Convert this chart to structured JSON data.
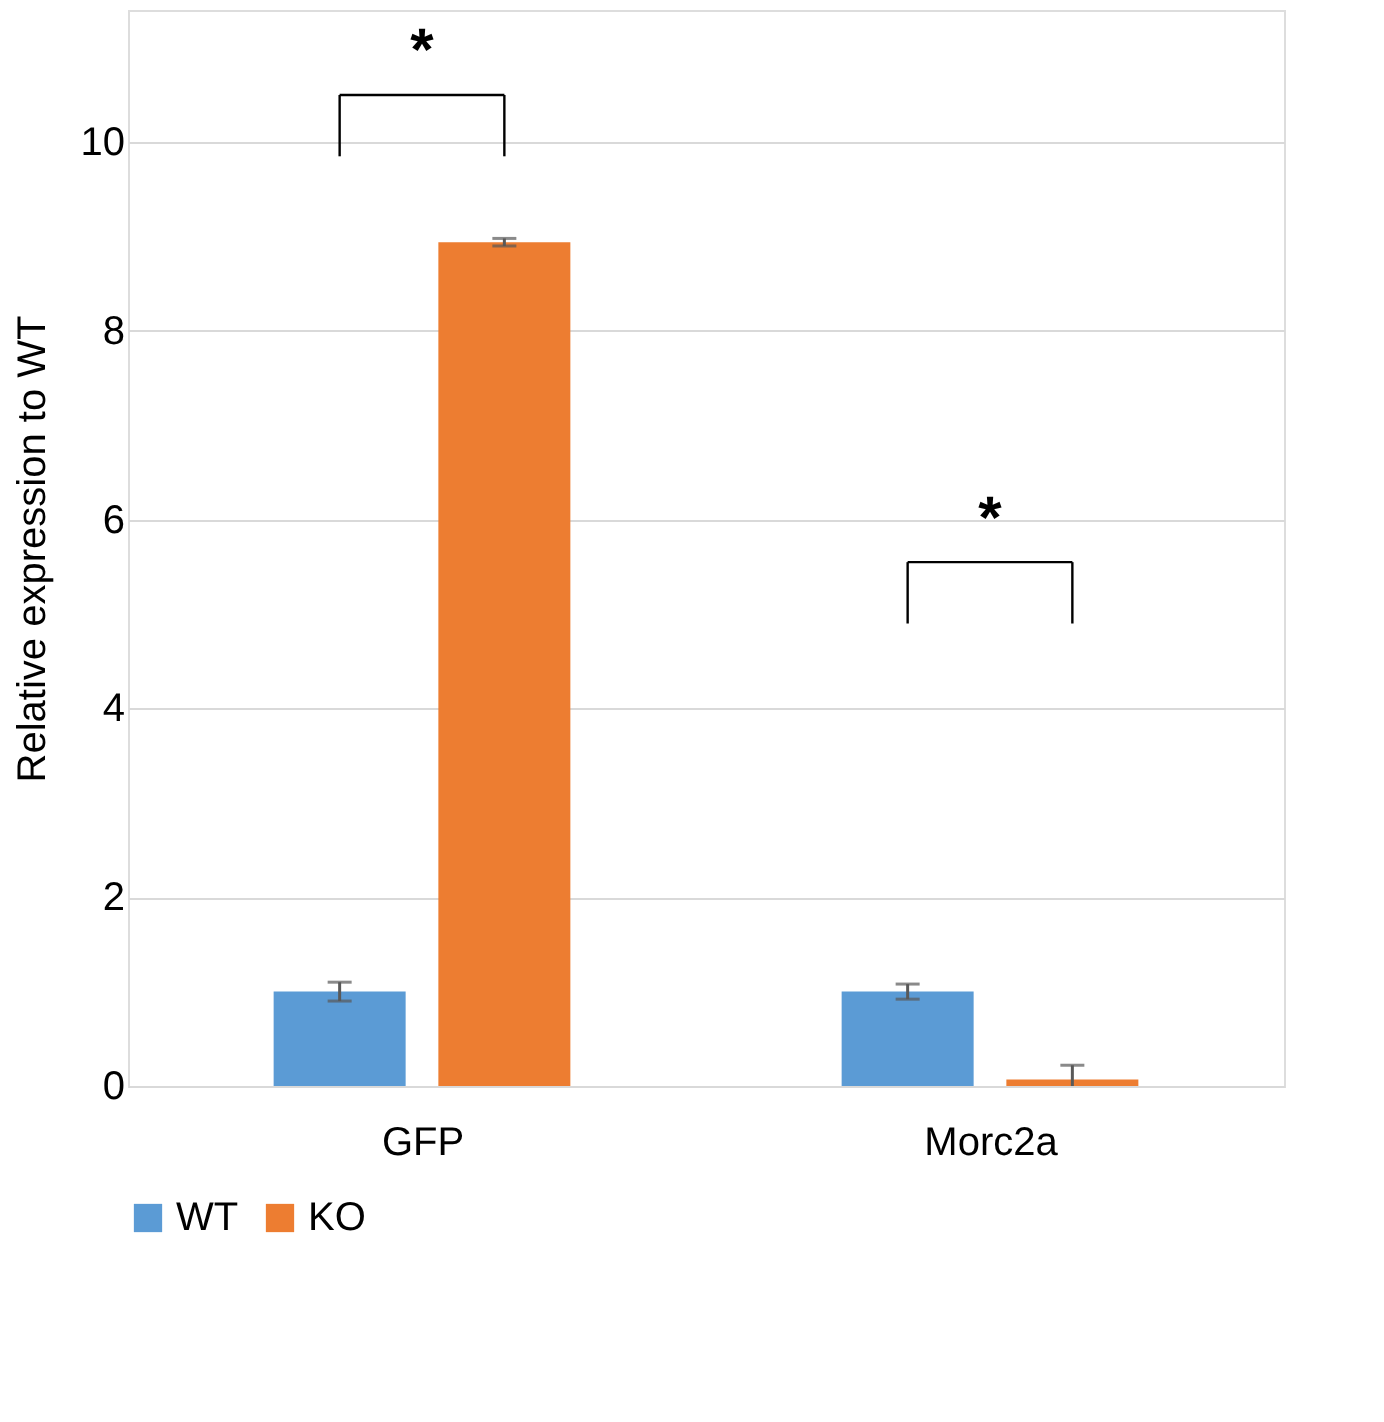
{
  "chart_data": {
    "type": "bar",
    "ylabel": "Relative expression to WT",
    "categories": [
      "GFP",
      "Morc2a"
    ],
    "series": [
      {
        "name": "WT",
        "color": "#5b9bd5",
        "values": [
          1.0,
          1.0
        ],
        "errors": [
          0.1,
          0.08
        ]
      },
      {
        "name": "KO",
        "color": "#ed7d31",
        "values": [
          8.94,
          0.07
        ],
        "errors": [
          0.04,
          0.15
        ]
      }
    ],
    "ylim": [
      0,
      11.4
    ],
    "yticks": [
      0,
      2,
      4,
      6,
      8,
      10
    ],
    "grid": "y",
    "legend": "bottom",
    "annotations": [
      "*",
      "*"
    ]
  }
}
